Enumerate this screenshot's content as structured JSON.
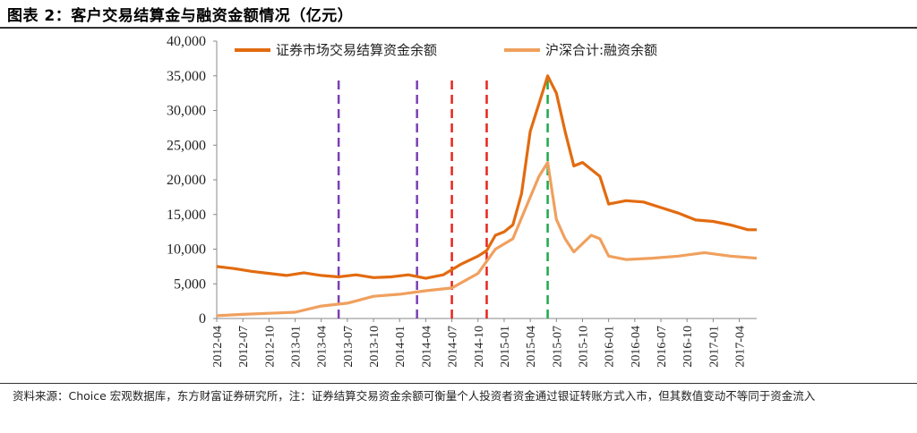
{
  "header": {
    "title": "图表 2：客户交易结算金与融资金额情况（亿元）"
  },
  "footnote": {
    "text": "资料来源：Choice 宏观数据库，东方财富证券研究所，注：证券结算交易资金余额可衡量个人投资者资金通过银证转账方式入市，但其数值变动不等同于资金流入"
  },
  "chart_data": {
    "type": "line",
    "title": "客户交易结算金与融资金额情况（亿元）",
    "xlabel": "",
    "ylabel": "",
    "ylim": [
      0,
      40000
    ],
    "y_ticks": [
      "0",
      "5,000",
      "10,000",
      "15,000",
      "20,000",
      "25,000",
      "30,000",
      "35,000",
      "40,000"
    ],
    "x_ticks": [
      "2012-04",
      "2012-07",
      "2012-10",
      "2013-01",
      "2013-04",
      "2013-07",
      "2013-10",
      "2014-01",
      "2014-04",
      "2014-07",
      "2014-10",
      "2015-01",
      "2015-04",
      "2015-07",
      "2015-10",
      "2016-01",
      "2016-04",
      "2016-07",
      "2016-10",
      "2017-01",
      "2017-04"
    ],
    "xlim": [
      "2012-04",
      "2017-06"
    ],
    "grid": false,
    "legend_position": "top",
    "series": [
      {
        "name": "证券市场交易结算资金余额",
        "color": "#e26b10",
        "points": [
          [
            "2012-04",
            7500
          ],
          [
            "2012-06",
            7200
          ],
          [
            "2012-08",
            6800
          ],
          [
            "2012-10",
            6500
          ],
          [
            "2012-12",
            6200
          ],
          [
            "2013-02",
            6600
          ],
          [
            "2013-04",
            6200
          ],
          [
            "2013-06",
            6000
          ],
          [
            "2013-08",
            6300
          ],
          [
            "2013-10",
            5900
          ],
          [
            "2013-12",
            6000
          ],
          [
            "2014-02",
            6300
          ],
          [
            "2014-04",
            5800
          ],
          [
            "2014-06",
            6300
          ],
          [
            "2014-08",
            7800
          ],
          [
            "2014-10",
            9000
          ],
          [
            "2014-11",
            9800
          ],
          [
            "2014-12",
            12000
          ],
          [
            "2015-01",
            12500
          ],
          [
            "2015-02",
            13500
          ],
          [
            "2015-03",
            18000
          ],
          [
            "2015-04",
            27000
          ],
          [
            "2015-05",
            31000
          ],
          [
            "2015-06",
            35000
          ],
          [
            "2015-07",
            32500
          ],
          [
            "2015-08",
            27000
          ],
          [
            "2015-09",
            22000
          ],
          [
            "2015-10",
            22500
          ],
          [
            "2015-11",
            21500
          ],
          [
            "2015-12",
            20500
          ],
          [
            "2016-01",
            16500
          ],
          [
            "2016-03",
            17000
          ],
          [
            "2016-05",
            16800
          ],
          [
            "2016-07",
            16000
          ],
          [
            "2016-09",
            15200
          ],
          [
            "2016-11",
            14200
          ],
          [
            "2017-01",
            14000
          ],
          [
            "2017-03",
            13500
          ],
          [
            "2017-05",
            12800
          ],
          [
            "2017-06",
            12800
          ]
        ]
      },
      {
        "name": "沪深合计:融资余额",
        "color": "#f0a05e",
        "points": [
          [
            "2012-04",
            400
          ],
          [
            "2012-07",
            600
          ],
          [
            "2012-10",
            750
          ],
          [
            "2013-01",
            900
          ],
          [
            "2013-04",
            1800
          ],
          [
            "2013-07",
            2200
          ],
          [
            "2013-10",
            3200
          ],
          [
            "2014-01",
            3500
          ],
          [
            "2014-04",
            4000
          ],
          [
            "2014-07",
            4400
          ],
          [
            "2014-10",
            6500
          ],
          [
            "2014-12",
            10000
          ],
          [
            "2015-02",
            11500
          ],
          [
            "2015-04",
            17500
          ],
          [
            "2015-05",
            20500
          ],
          [
            "2015-06",
            22500
          ],
          [
            "2015-07",
            14300
          ],
          [
            "2015-08",
            11500
          ],
          [
            "2015-09",
            9600
          ],
          [
            "2015-11",
            12000
          ],
          [
            "2015-12",
            11500
          ],
          [
            "2016-01",
            9000
          ],
          [
            "2016-03",
            8500
          ],
          [
            "2016-06",
            8700
          ],
          [
            "2016-09",
            9000
          ],
          [
            "2016-12",
            9500
          ],
          [
            "2017-03",
            9000
          ],
          [
            "2017-06",
            8700
          ]
        ]
      }
    ],
    "reference_lines": [
      {
        "x": "2013-06",
        "color": "#7b3fb5"
      },
      {
        "x": "2014-03",
        "color": "#7b3fb5"
      },
      {
        "x": "2014-07",
        "color": "#e8241c"
      },
      {
        "x": "2014-11",
        "color": "#e8241c"
      },
      {
        "x": "2015-06",
        "color": "#1faa4c"
      }
    ]
  }
}
